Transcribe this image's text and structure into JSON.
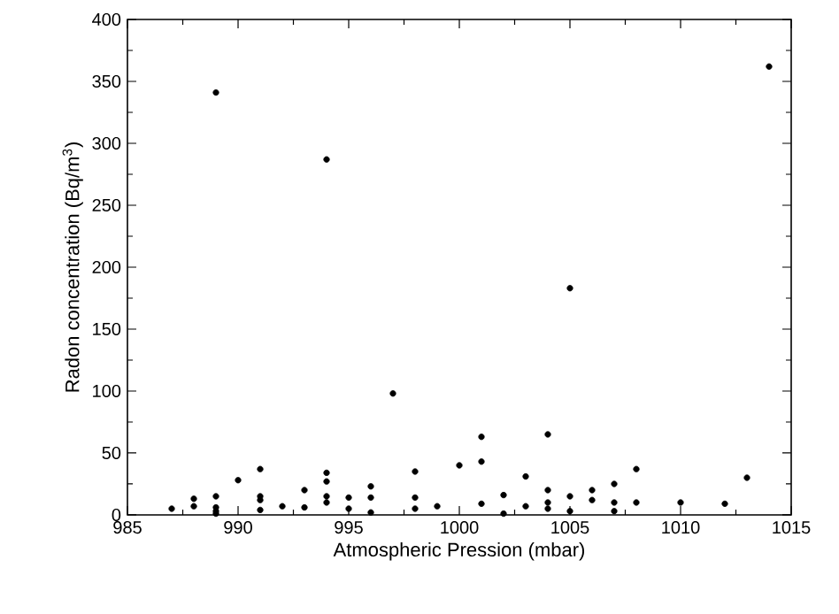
{
  "chart_data": {
    "type": "scatter",
    "xlabel": "Atmospheric Pression (mbar)",
    "ylabel": "Radon concentration (Bq/m$^{3}$)",
    "xlim": [
      985,
      1015
    ],
    "ylim": [
      0,
      400
    ],
    "xticks": [
      985,
      990,
      995,
      1000,
      1005,
      1010,
      1015
    ],
    "yticks": [
      0,
      50,
      100,
      150,
      200,
      250,
      300,
      350,
      400
    ],
    "marker": "circle",
    "series": [
      {
        "color": "#000000",
        "x": [
          987,
          988,
          988,
          989,
          989,
          989,
          989,
          989,
          990,
          991,
          991,
          991,
          991,
          992,
          993,
          993,
          994,
          994,
          994,
          994,
          994,
          995,
          995,
          996,
          996,
          996,
          997,
          998,
          998,
          998,
          999,
          1000,
          1001,
          1001,
          1001,
          1002,
          1002,
          1003,
          1003,
          1004,
          1004,
          1004,
          1004,
          1005,
          1005,
          1005,
          1006,
          1006,
          1007,
          1007,
          1007,
          1008,
          1008,
          1010,
          1012,
          1013,
          1014
        ],
        "values": [
          5,
          13,
          7,
          15,
          6,
          3,
          1,
          341,
          28,
          37,
          15,
          12,
          4,
          7,
          20,
          6,
          34,
          27,
          15,
          10,
          287,
          14,
          5,
          23,
          14,
          2,
          98,
          35,
          14,
          5,
          7,
          40,
          63,
          43,
          9,
          16,
          1,
          31,
          7,
          65,
          20,
          10,
          5,
          15,
          3,
          183,
          20,
          12,
          25,
          10,
          3,
          37,
          10,
          10,
          9,
          30,
          362
        ]
      }
    ]
  }
}
